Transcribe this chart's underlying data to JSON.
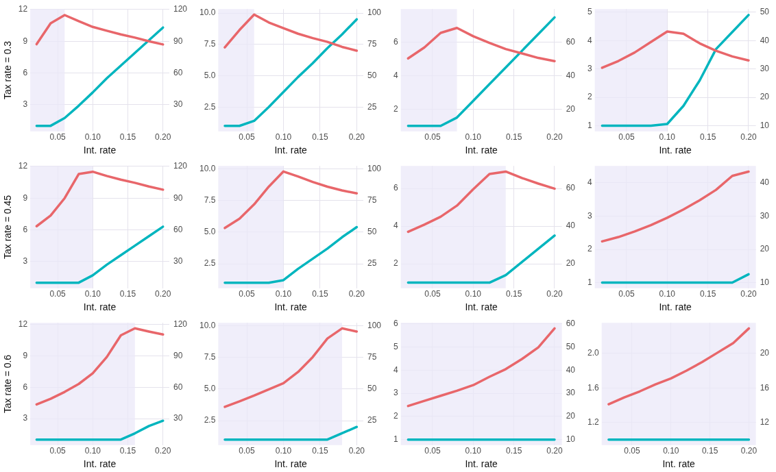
{
  "chart_data": [
    {
      "type": "line",
      "ylabel": "Tax rate = 0.3",
      "xlabel": "Int. rate",
      "x": [
        0.02,
        0.04,
        0.06,
        0.08,
        0.1,
        0.12,
        0.14,
        0.16,
        0.18,
        0.2
      ],
      "xlim": [
        0.011,
        0.209
      ],
      "xticks": [
        {
          "value": 0.05,
          "label": "0.05"
        },
        {
          "value": 0.1,
          "label": "0.10"
        },
        {
          "value": 0.15,
          "label": "0.15"
        },
        {
          "value": 0.2,
          "label": "0.20"
        }
      ],
      "ylim": [
        0.47,
        12.05
      ],
      "yticks": [
        3,
        6,
        9,
        12
      ],
      "y2lim": [
        4.7,
        120.5
      ],
      "y2ticks": [
        30,
        60,
        90,
        120
      ],
      "grid": true,
      "marker": "none",
      "line_style": "solid",
      "bands": [
        {
          "axis": "x",
          "from": 0.011,
          "to": 0.06,
          "color": "#ebe8f8"
        }
      ],
      "series": [
        {
          "color": "#e8666a",
          "values": [
            8.72,
            10.7,
            11.48,
            10.9,
            10.36,
            10.0,
            9.65,
            9.35,
            9.0,
            8.7
          ]
        },
        {
          "color": "#00b5be",
          "axis": "y2",
          "values": [
            10,
            10,
            17.4,
            29,
            41.6,
            55,
            67,
            79,
            91,
            103
          ]
        }
      ]
    },
    {
      "type": "line",
      "xlabel": "Int. rate",
      "x": [
        0.02,
        0.04,
        0.06,
        0.08,
        0.1,
        0.12,
        0.14,
        0.16,
        0.18,
        0.2
      ],
      "xlim": [
        0.011,
        0.209
      ],
      "xticks": [
        {
          "value": 0.05,
          "label": "0.05"
        },
        {
          "value": 0.1,
          "label": "0.10"
        },
        {
          "value": 0.15,
          "label": "0.15"
        },
        {
          "value": 0.2,
          "label": "0.20"
        }
      ],
      "ylim": [
        0.56,
        10.32
      ],
      "yticks": [
        {
          "value": 2.5,
          "label": "2.5"
        },
        {
          "value": 5,
          "label": "5.0"
        },
        {
          "value": 7.5,
          "label": "7.5"
        },
        {
          "value": 10,
          "label": "10.0"
        }
      ],
      "y2lim": [
        5.6,
        103.2
      ],
      "y2ticks": [
        25,
        50,
        75,
        100
      ],
      "grid": true,
      "marker": "none",
      "line_style": "solid",
      "bands": [
        {
          "axis": "x",
          "from": 0.011,
          "to": 0.06,
          "color": "#ebe8f8"
        }
      ],
      "series": [
        {
          "color": "#e8666a",
          "values": [
            7.26,
            8.65,
            9.88,
            9.25,
            8.8,
            8.35,
            8.0,
            7.7,
            7.3,
            7.0
          ]
        },
        {
          "color": "#00b5be",
          "axis": "y2",
          "values": [
            10,
            10,
            14,
            25,
            37,
            49,
            60,
            72,
            83,
            95
          ]
        }
      ]
    },
    {
      "type": "line",
      "xlabel": "Int. rate",
      "x": [
        0.02,
        0.04,
        0.06,
        0.08,
        0.1,
        0.12,
        0.14,
        0.16,
        0.18,
        0.2
      ],
      "xlim": [
        0.011,
        0.209
      ],
      "xticks": [
        {
          "value": 0.05,
          "label": "0.05"
        },
        {
          "value": 0.1,
          "label": "0.10"
        },
        {
          "value": 0.15,
          "label": "0.15"
        },
        {
          "value": 0.2,
          "label": "0.20"
        }
      ],
      "ylim": [
        0.67,
        8.0
      ],
      "yticks": [
        2,
        4,
        6
      ],
      "y2lim": [
        6.7,
        80
      ],
      "y2ticks": [
        20,
        40,
        60
      ],
      "grid": true,
      "marker": "none",
      "line_style": "solid",
      "bands": [
        {
          "axis": "x",
          "from": 0.011,
          "to": 0.08,
          "color": "#ebe8f8"
        }
      ],
      "series": [
        {
          "color": "#e8666a",
          "values": [
            5.04,
            5.7,
            6.57,
            6.87,
            6.37,
            5.97,
            5.6,
            5.34,
            5.07,
            4.88
          ]
        },
        {
          "color": "#00b5be",
          "axis": "y2",
          "values": [
            10,
            10,
            10,
            15,
            25,
            35,
            45,
            55,
            65,
            75
          ]
        }
      ]
    },
    {
      "type": "line",
      "xlabel": "Int. rate",
      "x": [
        0.02,
        0.04,
        0.06,
        0.08,
        0.1,
        0.12,
        0.14,
        0.16,
        0.18,
        0.2
      ],
      "xlim": [
        0.011,
        0.209
      ],
      "xticks": [
        {
          "value": 0.05,
          "label": "0.05"
        },
        {
          "value": 0.1,
          "label": "0.10"
        },
        {
          "value": 0.15,
          "label": "0.15"
        },
        {
          "value": 0.2,
          "label": "0.20"
        }
      ],
      "ylim": [
        0.8,
        5.11
      ],
      "yticks": [
        1,
        2,
        3,
        4,
        5
      ],
      "y2lim": [
        8,
        51.1
      ],
      "y2ticks": [
        10,
        20,
        30,
        40,
        50
      ],
      "grid": true,
      "marker": "none",
      "line_style": "solid",
      "bands": [
        {
          "axis": "x",
          "from": 0.011,
          "to": 0.1,
          "color": "#ebe8f8"
        }
      ],
      "series": [
        {
          "color": "#e8666a",
          "values": [
            3.04,
            3.28,
            3.58,
            3.95,
            4.32,
            4.24,
            3.9,
            3.64,
            3.44,
            3.3
          ]
        },
        {
          "color": "#00b5be",
          "axis": "y2",
          "values": [
            10,
            10,
            10,
            10,
            10.6,
            17,
            26,
            37,
            43,
            49
          ]
        }
      ]
    },
    {
      "type": "line",
      "ylabel": "Tax rate = 0.45",
      "xlabel": "Int. rate",
      "x": [
        0.02,
        0.04,
        0.06,
        0.08,
        0.1,
        0.12,
        0.14,
        0.16,
        0.18,
        0.2
      ],
      "xlim": [
        0.011,
        0.209
      ],
      "xticks": [
        {
          "value": 0.05,
          "label": "0.05"
        },
        {
          "value": 0.1,
          "label": "0.10"
        },
        {
          "value": 0.15,
          "label": "0.15"
        },
        {
          "value": 0.2,
          "label": "0.20"
        }
      ],
      "ylim": [
        0.47,
        12.05
      ],
      "yticks": [
        3,
        6,
        9,
        12
      ],
      "y2lim": [
        4.7,
        120.5
      ],
      "y2ticks": [
        30,
        60,
        90,
        120
      ],
      "grid": true,
      "marker": "none",
      "line_style": "solid",
      "bands": [
        {
          "axis": "x",
          "from": 0.011,
          "to": 0.1,
          "color": "#ebe8f8"
        }
      ],
      "series": [
        {
          "color": "#e8666a",
          "values": [
            6.34,
            7.35,
            9.0,
            11.28,
            11.5,
            11.1,
            10.75,
            10.45,
            10.1,
            9.8
          ]
        },
        {
          "color": "#00b5be",
          "axis": "y2",
          "values": [
            10,
            10,
            10,
            10,
            17,
            27,
            36,
            45,
            54,
            63
          ]
        }
      ]
    },
    {
      "type": "line",
      "xlabel": "Int. rate",
      "x": [
        0.02,
        0.04,
        0.06,
        0.08,
        0.1,
        0.12,
        0.14,
        0.16,
        0.18,
        0.2
      ],
      "xlim": [
        0.011,
        0.209
      ],
      "xticks": [
        {
          "value": 0.05,
          "label": "0.05"
        },
        {
          "value": 0.1,
          "label": "0.10"
        },
        {
          "value": 0.15,
          "label": "0.15"
        },
        {
          "value": 0.2,
          "label": "0.20"
        }
      ],
      "ylim": [
        0.56,
        10.24
      ],
      "yticks": [
        {
          "value": 2.5,
          "label": "2.5"
        },
        {
          "value": 5,
          "label": "5.0"
        },
        {
          "value": 7.5,
          "label": "7.5"
        },
        {
          "value": 10,
          "label": "10.0"
        }
      ],
      "y2lim": [
        5.6,
        102.4
      ],
      "y2ticks": [
        25,
        50,
        75,
        100
      ],
      "grid": true,
      "marker": "none",
      "line_style": "solid",
      "bands": [
        {
          "axis": "x",
          "from": 0.011,
          "to": 0.1,
          "color": "#ebe8f8"
        }
      ],
      "series": [
        {
          "color": "#e8666a",
          "values": [
            5.33,
            6.06,
            7.2,
            8.6,
            9.8,
            9.4,
            8.97,
            8.6,
            8.3,
            8.07
          ]
        },
        {
          "color": "#00b5be",
          "axis": "y2",
          "values": [
            10,
            10,
            10,
            10,
            12,
            21,
            29,
            37,
            46,
            54
          ]
        }
      ]
    },
    {
      "type": "line",
      "xlabel": "Int. rate",
      "x": [
        0.02,
        0.04,
        0.06,
        0.08,
        0.1,
        0.12,
        0.14,
        0.16,
        0.18,
        0.2
      ],
      "xlim": [
        0.011,
        0.209
      ],
      "xticks": [
        {
          "value": 0.05,
          "label": "0.05"
        },
        {
          "value": 0.1,
          "label": "0.10"
        },
        {
          "value": 0.15,
          "label": "0.15"
        },
        {
          "value": 0.2,
          "label": "0.20"
        }
      ],
      "ylim": [
        0.7,
        7.2
      ],
      "yticks": [
        2,
        4,
        6
      ],
      "y2lim": [
        7,
        72
      ],
      "y2ticks": [
        20,
        40,
        60
      ],
      "grid": true,
      "marker": "none",
      "line_style": "solid",
      "bands": [
        {
          "axis": "x",
          "from": 0.011,
          "to": 0.14,
          "color": "#ebe8f8"
        }
      ],
      "series": [
        {
          "color": "#e8666a",
          "values": [
            3.7,
            4.08,
            4.5,
            5.09,
            5.96,
            6.77,
            6.9,
            6.56,
            6.26,
            5.99
          ]
        },
        {
          "color": "#00b5be",
          "axis": "y2",
          "values": [
            10,
            10,
            10,
            10,
            10,
            10,
            14,
            21,
            28,
            35
          ]
        }
      ]
    },
    {
      "type": "line",
      "xlabel": "Int. rate",
      "x": [
        0.02,
        0.04,
        0.06,
        0.08,
        0.1,
        0.12,
        0.14,
        0.16,
        0.18,
        0.2
      ],
      "xlim": [
        0.011,
        0.209
      ],
      "xticks": [
        {
          "value": 0.05,
          "label": "0.05"
        },
        {
          "value": 0.1,
          "label": "0.10"
        },
        {
          "value": 0.15,
          "label": "0.15"
        },
        {
          "value": 0.2,
          "label": "0.20"
        }
      ],
      "ylim": [
        0.83,
        4.51
      ],
      "yticks": [
        1,
        2,
        3,
        4
      ],
      "y2lim": [
        8.3,
        45.1
      ],
      "y2ticks": [
        10,
        20,
        30,
        40
      ],
      "grid": true,
      "marker": "none",
      "line_style": "solid",
      "bands": [
        {
          "axis": "x",
          "from": 0.011,
          "to": 0.209,
          "color": "#ebe8f8"
        }
      ],
      "series": [
        {
          "color": "#e8666a",
          "values": [
            2.24,
            2.37,
            2.54,
            2.73,
            2.95,
            3.2,
            3.48,
            3.79,
            4.21,
            4.34
          ]
        },
        {
          "color": "#00b5be",
          "axis": "y2",
          "values": [
            10,
            10,
            10,
            10,
            10,
            10,
            10,
            10,
            10,
            12.5
          ]
        }
      ]
    },
    {
      "type": "line",
      "ylabel": "Tax rate = 0.6",
      "xlabel": "Int. rate",
      "x": [
        0.02,
        0.04,
        0.06,
        0.08,
        0.1,
        0.12,
        0.14,
        0.16,
        0.18,
        0.2
      ],
      "xlim": [
        0.011,
        0.209
      ],
      "xticks": [
        {
          "value": 0.05,
          "label": "0.05"
        },
        {
          "value": 0.1,
          "label": "0.10"
        },
        {
          "value": 0.15,
          "label": "0.15"
        },
        {
          "value": 0.2,
          "label": "0.20"
        }
      ],
      "ylim": [
        0.47,
        12.17
      ],
      "yticks": [
        3,
        6,
        9,
        12
      ],
      "y2lim": [
        4.7,
        121.7
      ],
      "y2ticks": [
        30,
        60,
        90,
        120
      ],
      "grid": true,
      "marker": "none",
      "line_style": "solid",
      "bands": [
        {
          "axis": "x",
          "from": 0.011,
          "to": 0.16,
          "color": "#ebe8f8"
        }
      ],
      "series": [
        {
          "color": "#e8666a",
          "values": [
            4.36,
            4.9,
            5.56,
            6.32,
            7.35,
            8.9,
            10.97,
            11.64,
            11.33,
            11.05
          ]
        },
        {
          "color": "#00b5be",
          "axis": "y2",
          "values": [
            10,
            10,
            10,
            10,
            10,
            10,
            10,
            16,
            23,
            28
          ]
        }
      ]
    },
    {
      "type": "line",
      "xlabel": "Int. rate",
      "x": [
        0.02,
        0.04,
        0.06,
        0.08,
        0.1,
        0.12,
        0.14,
        0.16,
        0.18,
        0.2
      ],
      "xlim": [
        0.011,
        0.209
      ],
      "xticks": [
        {
          "value": 0.05,
          "label": "0.05"
        },
        {
          "value": 0.1,
          "label": "0.10"
        },
        {
          "value": 0.15,
          "label": "0.15"
        },
        {
          "value": 0.2,
          "label": "0.20"
        }
      ],
      "ylim": [
        0.56,
        10.24
      ],
      "yticks": [
        {
          "value": 2.5,
          "label": "2.5"
        },
        {
          "value": 5,
          "label": "5.0"
        },
        {
          "value": 7.5,
          "label": "7.5"
        },
        {
          "value": 10,
          "label": "10.0"
        }
      ],
      "y2lim": [
        5.6,
        102.4
      ],
      "y2ticks": [
        25,
        50,
        75,
        100
      ],
      "grid": true,
      "marker": "none",
      "line_style": "solid",
      "bands": [
        {
          "axis": "x",
          "from": 0.011,
          "to": 0.18,
          "color": "#ebe8f8"
        }
      ],
      "series": [
        {
          "color": "#e8666a",
          "values": [
            3.59,
            4.02,
            4.48,
            4.97,
            5.46,
            6.35,
            7.53,
            9.0,
            9.8,
            9.55
          ]
        },
        {
          "color": "#00b5be",
          "axis": "y2",
          "values": [
            10,
            10,
            10,
            10,
            10,
            10,
            10,
            10,
            15,
            20
          ]
        }
      ]
    },
    {
      "type": "line",
      "xlabel": "Int. rate",
      "x": [
        0.02,
        0.04,
        0.06,
        0.08,
        0.1,
        0.12,
        0.14,
        0.16,
        0.18,
        0.2
      ],
      "xlim": [
        0.011,
        0.209
      ],
      "xticks": [
        {
          "value": 0.05,
          "label": "0.05"
        },
        {
          "value": 0.1,
          "label": "0.10"
        },
        {
          "value": 0.15,
          "label": "0.15"
        },
        {
          "value": 0.2,
          "label": "0.20"
        }
      ],
      "ylim": [
        0.76,
        6.04
      ],
      "yticks": [
        1,
        2,
        3,
        4,
        5,
        6
      ],
      "y2lim": [
        7.6,
        60.4
      ],
      "y2ticks": [
        10,
        20,
        30,
        40,
        50,
        60
      ],
      "grid": true,
      "marker": "none",
      "line_style": "solid",
      "bands": [
        {
          "axis": "x",
          "from": 0.011,
          "to": 0.209,
          "color": "#ebe8f8"
        }
      ],
      "series": [
        {
          "color": "#e8666a",
          "values": [
            2.45,
            2.67,
            2.89,
            3.11,
            3.35,
            3.71,
            4.04,
            4.48,
            4.98,
            5.8
          ]
        },
        {
          "color": "#00b5be",
          "axis": "y2",
          "values": [
            10,
            10,
            10,
            10,
            10,
            10,
            10,
            10,
            10,
            10
          ]
        }
      ]
    },
    {
      "type": "line",
      "xlabel": "Int. rate",
      "x": [
        0.02,
        0.04,
        0.06,
        0.08,
        0.1,
        0.12,
        0.14,
        0.16,
        0.18,
        0.2
      ],
      "xlim": [
        0.011,
        0.209
      ],
      "xticks": [
        {
          "value": 0.05,
          "label": "0.05"
        },
        {
          "value": 0.1,
          "label": "0.10"
        },
        {
          "value": 0.15,
          "label": "0.15"
        },
        {
          "value": 0.2,
          "label": "0.20"
        }
      ],
      "ylim": [
        0.936,
        2.355
      ],
      "yticks": [
        1.2,
        1.6,
        {
          "value": 2,
          "label": "2.0"
        }
      ],
      "y2lim": [
        9.36,
        23.55
      ],
      "y2ticks": [
        12,
        16,
        20
      ],
      "grid": true,
      "marker": "none",
      "line_style": "solid",
      "bands": [
        {
          "axis": "x",
          "from": 0.011,
          "to": 0.209,
          "color": "#ebe8f8"
        }
      ],
      "series": [
        {
          "color": "#e8666a",
          "values": [
            1.41,
            1.49,
            1.56,
            1.64,
            1.71,
            1.8,
            1.9,
            2.01,
            2.12,
            2.29
          ]
        },
        {
          "color": "#00b5be",
          "axis": "y2",
          "values": [
            10,
            10,
            10,
            10,
            10,
            10,
            10,
            10,
            10,
            10
          ]
        }
      ]
    }
  ]
}
